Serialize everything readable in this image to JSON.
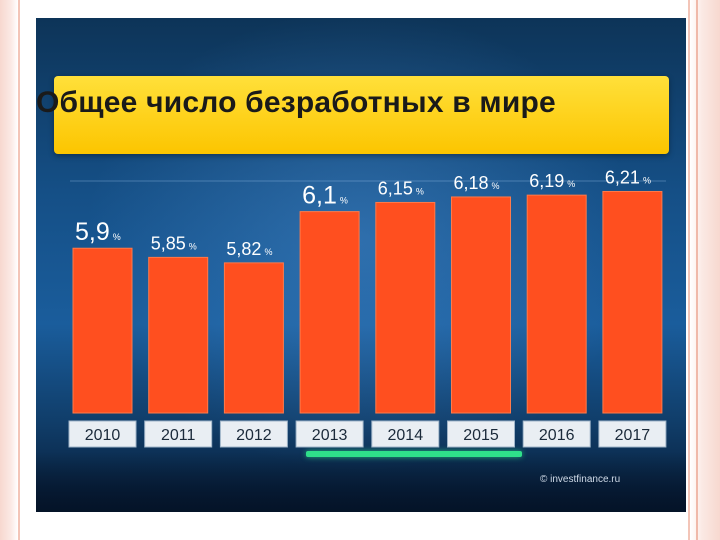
{
  "chart_data": {
    "type": "bar",
    "title": "Общее число безработных в мире",
    "categories": [
      "2010",
      "2011",
      "2012",
      "2013",
      "2014",
      "2015",
      "2016",
      "2017"
    ],
    "values": [
      5.9,
      5.85,
      5.82,
      6.1,
      6.15,
      6.18,
      6.19,
      6.21
    ],
    "value_labels": [
      "5,9",
      "5,85",
      "5,82",
      "6,1",
      "6,15",
      "6,18",
      "6,19",
      "6,21"
    ],
    "unit": "%",
    "bar_color": "#ff4f1f",
    "ylim": [
      5.0,
      6.3
    ],
    "grid": false
  },
  "watermark": "© investfinance.ru"
}
